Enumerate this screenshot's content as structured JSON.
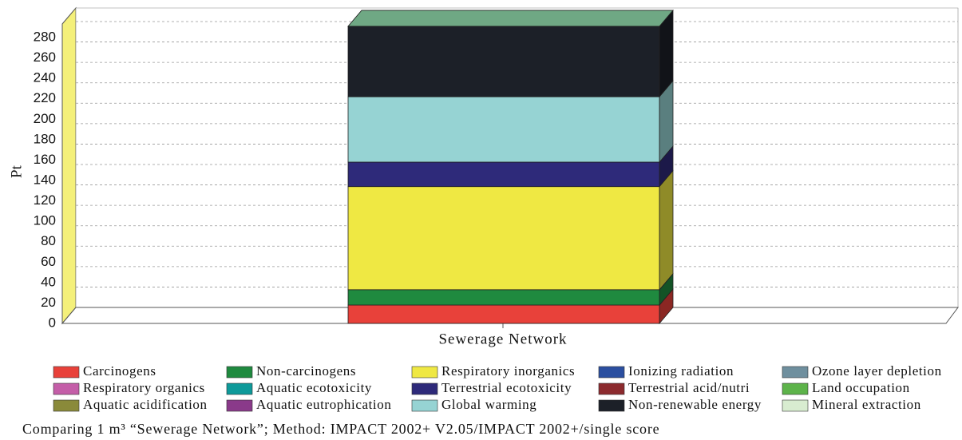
{
  "chart_data": {
    "type": "stacked_bar_3d",
    "y_label": "Pt",
    "categories": [
      "Sewerage Network"
    ],
    "ylim": [
      0,
      280
    ],
    "yticks": [
      0,
      20,
      40,
      60,
      80,
      100,
      120,
      140,
      160,
      180,
      200,
      220,
      240,
      260,
      280
    ],
    "grid": true,
    "series": [
      {
        "name": "Carcinogens",
        "color": "#e8413a",
        "values": [
          18
        ]
      },
      {
        "name": "Non-carcinogens",
        "color": "#1f8a3f",
        "values": [
          15
        ]
      },
      {
        "name": "Respiratory inorganics",
        "color": "#efe843",
        "values": [
          101
        ]
      },
      {
        "name": "Ionizing radiation",
        "color": "#2b4fa0",
        "values": [
          0
        ]
      },
      {
        "name": "Ozone layer depletion",
        "color": "#6f8f9e",
        "values": [
          0
        ]
      },
      {
        "name": "Respiratory organics",
        "color": "#c45ea8",
        "values": [
          0
        ]
      },
      {
        "name": "Aquatic ecotoxicity",
        "color": "#0e9a9a",
        "values": [
          0
        ]
      },
      {
        "name": "Terrestrial ecotoxicity",
        "color": "#2e2a7a",
        "values": [
          24
        ]
      },
      {
        "name": "Terrestrial acid/nutri",
        "color": "#8c2a2e",
        "values": [
          0
        ]
      },
      {
        "name": "Land occupation",
        "color": "#5db34a",
        "values": [
          0
        ]
      },
      {
        "name": "Aquatic acidification",
        "color": "#8a8a3a",
        "values": [
          0
        ]
      },
      {
        "name": "Aquatic eutrophication",
        "color": "#8a3a8a",
        "values": [
          0
        ]
      },
      {
        "name": "Global warming",
        "color": "#96d3d3",
        "values": [
          64
        ]
      },
      {
        "name": "Non-renewable energy",
        "color": "#1c2028",
        "values": [
          69
        ]
      },
      {
        "name": "Mineral extraction",
        "color": "#d8ecd0",
        "values": [
          0
        ]
      }
    ],
    "caption": "Comparing 1 m³ “Sewerage Network”; Method: IMPACT 2002+ V2.05/IMPACT 2002+/single score"
  }
}
